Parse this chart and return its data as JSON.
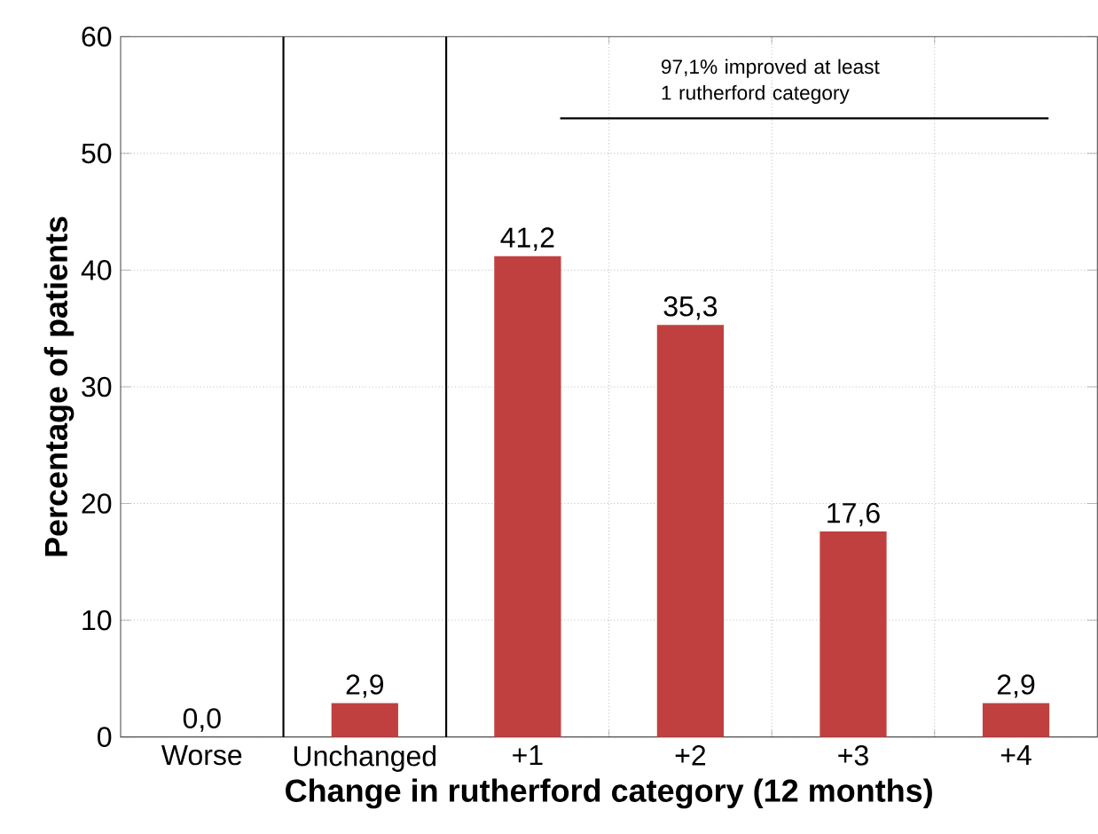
{
  "chart_data": {
    "type": "bar",
    "xlabel": "Change in rutherford category (12 months)",
    "ylabel": "Percentage of patients",
    "categories": [
      "Worse",
      "Unchanged",
      "+1",
      "+2",
      "+3",
      "+4"
    ],
    "values": [
      0.0,
      2.9,
      41.2,
      35.3,
      17.6,
      2.9
    ],
    "value_labels": [
      "0,0",
      "2,9",
      "41,2",
      "35,3",
      "17,6",
      "2,9"
    ],
    "color": "#c04040",
    "ylim": [
      0,
      60
    ],
    "yticks": [
      0,
      10,
      20,
      30,
      40,
      50,
      60
    ],
    "grid": true,
    "ref_lines": [
      {
        "axis": "y",
        "value": 53,
        "label": "97,1% improved at least 1 rutherford category",
        "color": "#000000"
      }
    ]
  }
}
